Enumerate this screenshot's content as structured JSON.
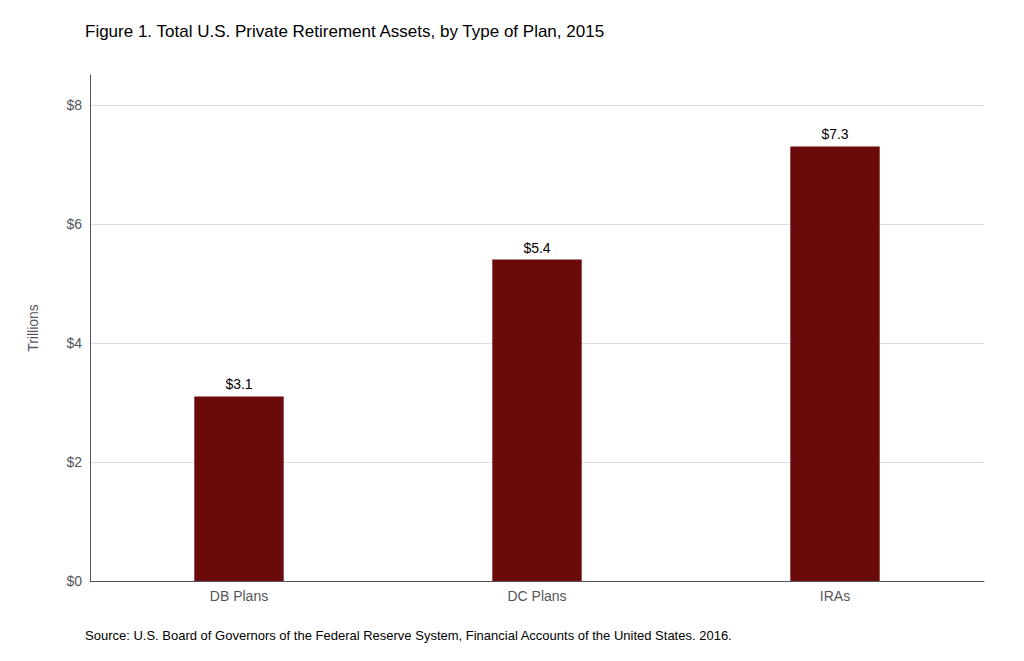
{
  "chart_data": {
    "type": "bar",
    "title": "Figure 1. Total U.S. Private Retirement Assets, by Type of Plan, 2015",
    "annotations": [
      "Source: U.S. Board of Governors of the Federal Reserve System, Financial Accounts of the United States. 2016."
    ],
    "categories": [
      "DB Plans",
      "DC Plans",
      "IRAs"
    ],
    "values": [
      3.1,
      5.4,
      7.3
    ],
    "value_labels": [
      "$3.1",
      "$5.4",
      "$7.3"
    ],
    "data_labels": true,
    "color": "#6B0A0A",
    "ylabel": "Trillions",
    "ylim": [
      0,
      8.5
    ],
    "yticks": [
      {
        "value": 0,
        "label": "$0"
      },
      {
        "value": 2,
        "label": "$2"
      },
      {
        "value": 4,
        "label": "$4"
      },
      {
        "value": 6,
        "label": "$6"
      },
      {
        "value": 8,
        "label": "$8"
      }
    ],
    "grid": true
  }
}
